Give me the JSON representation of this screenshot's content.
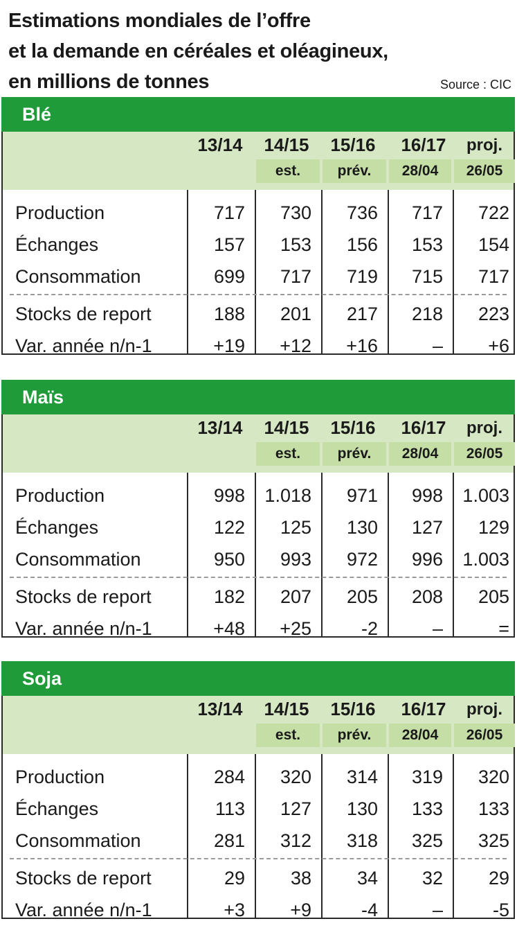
{
  "title_lines": [
    "Estimations mondiales de l’offre",
    "et la demande en céréales et oléagineux,",
    "en millions de tonnes"
  ],
  "source": "Source : CIC",
  "columns": {
    "periods": [
      "13/14",
      "14/15",
      "15/16",
      "16/17",
      "proj."
    ],
    "sub": [
      "est.",
      "prév.",
      "28/04",
      "26/05"
    ]
  },
  "row_labels": [
    "Production",
    "Échanges",
    "Consommation",
    "Stocks de report",
    "Var. année n/n-1"
  ],
  "colors": {
    "header_green": "#1f9b3a",
    "band_light": "#d6e8c3",
    "band_mid": "#c4dea6"
  },
  "chart_data": [
    {
      "type": "table",
      "title": "Blé",
      "columns": [
        "13/14",
        "14/15 est.",
        "15/16 prév.",
        "16/17 proj. 28/04",
        "16/17 proj. 26/05"
      ],
      "rows": [
        [
          "Production",
          "717",
          "730",
          "736",
          "717",
          "722"
        ],
        [
          "Échanges",
          "157",
          "153",
          "156",
          "153",
          "154"
        ],
        [
          "Consommation",
          "699",
          "717",
          "719",
          "715",
          "717"
        ],
        [
          "Stocks de report",
          "188",
          "201",
          "217",
          "218",
          "223"
        ],
        [
          "Var. année n/n-1",
          "+19",
          "+12",
          "+16",
          "–",
          "+6"
        ]
      ]
    },
    {
      "type": "table",
      "title": "Maïs",
      "columns": [
        "13/14",
        "14/15 est.",
        "15/16 prév.",
        "16/17 proj. 28/04",
        "16/17 proj. 26/05"
      ],
      "rows": [
        [
          "Production",
          "998",
          "1.018",
          "971",
          "998",
          "1.003"
        ],
        [
          "Échanges",
          "122",
          "125",
          "130",
          "127",
          "129"
        ],
        [
          "Consommation",
          "950",
          "993",
          "972",
          "996",
          "1.003"
        ],
        [
          "Stocks de report",
          "182",
          "207",
          "205",
          "208",
          "205"
        ],
        [
          "Var. année n/n-1",
          "+48",
          "+25",
          "-2",
          "–",
          "="
        ]
      ]
    },
    {
      "type": "table",
      "title": "Soja",
      "columns": [
        "13/14",
        "14/15 est.",
        "15/16 prév.",
        "16/17 proj. 28/04",
        "16/17 proj. 26/05"
      ],
      "rows": [
        [
          "Production",
          "284",
          "320",
          "314",
          "319",
          "320"
        ],
        [
          "Échanges",
          "113",
          "127",
          "130",
          "133",
          "133"
        ],
        [
          "Consommation",
          "281",
          "312",
          "318",
          "325",
          "325"
        ],
        [
          "Stocks de report",
          "29",
          "38",
          "34",
          "32",
          "29"
        ],
        [
          "Var. année n/n-1",
          "+3",
          "+9",
          "-4",
          "–",
          "-5"
        ]
      ]
    }
  ]
}
